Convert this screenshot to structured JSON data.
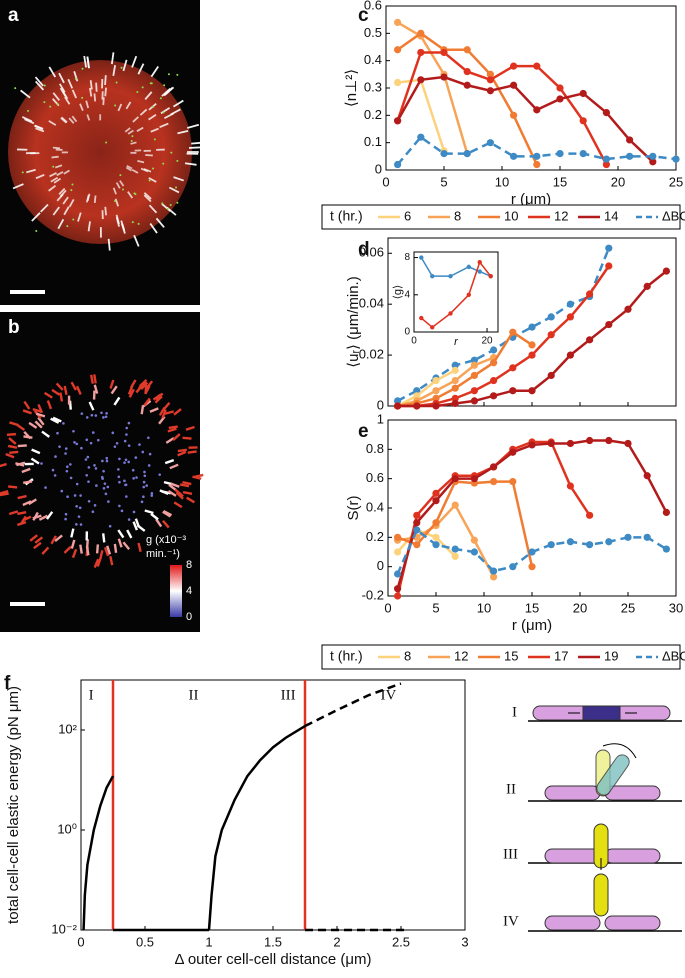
{
  "panel_labels": [
    "a",
    "b",
    "c",
    "d",
    "e",
    "f"
  ],
  "colorbar": {
    "label_lines": [
      "g (x10⁻³",
      "min.⁻¹)"
    ],
    "ticks": [
      8,
      4,
      0
    ]
  },
  "schematic_labels": [
    "I",
    "II",
    "III",
    "IV"
  ],
  "chart_data": [
    {
      "type": "line",
      "xlabel": "r (μm)",
      "ylabel": "⟨n⊥²⟩",
      "xlim": [
        0,
        25
      ],
      "ylim": [
        0,
        0.6
      ],
      "xticks": [
        0,
        5,
        10,
        15,
        20,
        25
      ],
      "yticks": [
        0,
        0.1,
        0.2,
        0.3,
        0.4,
        0.5,
        0.6
      ],
      "legend_title": "t (hr.)",
      "series": [
        {
          "name": "6",
          "color": "#fdd27d",
          "x": [
            1,
            3,
            5
          ],
          "values": [
            0.32,
            0.33,
            0.07
          ]
        },
        {
          "name": "8",
          "color": "#f7a457",
          "x": [
            1,
            3,
            5,
            7
          ],
          "values": [
            0.54,
            0.49,
            0.35,
            0.06
          ]
        },
        {
          "name": "10",
          "color": "#f07c33",
          "x": [
            1,
            3,
            5,
            7,
            9,
            11,
            13
          ],
          "values": [
            0.44,
            0.5,
            0.44,
            0.44,
            0.35,
            0.2,
            0.02
          ]
        },
        {
          "name": "12",
          "color": "#e0331f",
          "x": [
            1,
            3,
            5,
            7,
            9,
            11,
            13,
            15,
            17,
            19
          ],
          "values": [
            0.18,
            0.43,
            0.43,
            0.36,
            0.33,
            0.38,
            0.38,
            0.3,
            0.18,
            0.02
          ]
        },
        {
          "name": "14",
          "color": "#b31b1b",
          "x": [
            1,
            3,
            5,
            7,
            9,
            11,
            13,
            15,
            17,
            19,
            21,
            23
          ],
          "values": [
            0.18,
            0.33,
            0.34,
            0.31,
            0.29,
            0.31,
            0.22,
            0.26,
            0.28,
            0.21,
            0.11,
            0.03
          ]
        },
        {
          "name": "ΔBC",
          "color": "#3d8ac4",
          "dashed": true,
          "x": [
            1,
            3,
            5,
            7,
            9,
            11,
            13,
            15,
            17,
            19,
            21,
            23,
            25
          ],
          "values": [
            0.02,
            0.12,
            0.06,
            0.06,
            0.1,
            0.05,
            0.05,
            0.06,
            0.06,
            0.04,
            0.05,
            0.05,
            0.04
          ]
        }
      ]
    },
    {
      "type": "line",
      "ylabel": "⟨uᵣ⟩ (μm/min.)",
      "xlim": [
        0,
        30
      ],
      "ylim": [
        0,
        0.066
      ],
      "xticks": [
        0,
        5,
        10,
        15,
        20,
        25,
        30
      ],
      "xtick_labels": false,
      "yticks": [
        0,
        0.02,
        0.04,
        0.06
      ],
      "series": [
        {
          "color": "#3d8ac4",
          "dashed": true,
          "x": [
            1,
            3,
            5,
            7,
            9,
            11,
            13,
            15,
            17,
            19,
            21,
            23
          ],
          "values": [
            0.002,
            0.006,
            0.011,
            0.016,
            0.018,
            0.022,
            0.027,
            0.031,
            0.035,
            0.04,
            0.043,
            0.062
          ]
        },
        {
          "color": "#fdd27d",
          "x": [
            1,
            3,
            5,
            7
          ],
          "values": [
            0,
            0.004,
            0.01,
            0.014
          ]
        },
        {
          "color": "#f7a457",
          "x": [
            1,
            3,
            5,
            7,
            9,
            11
          ],
          "values": [
            0,
            0.002,
            0.006,
            0.01,
            0.016,
            0.019
          ]
        },
        {
          "color": "#f07c33",
          "x": [
            1,
            3,
            5,
            7,
            9,
            11,
            13,
            15
          ],
          "values": [
            0,
            0.001,
            0.003,
            0.007,
            0.012,
            0.017,
            0.029,
            0.024
          ]
        },
        {
          "color": "#e0331f",
          "x": [
            1,
            3,
            5,
            7,
            9,
            11,
            13,
            15,
            17,
            19,
            21,
            23
          ],
          "values": [
            0,
            0,
            0.001,
            0.003,
            0.006,
            0.01,
            0.015,
            0.02,
            0.028,
            0.035,
            0.044,
            0.055
          ]
        },
        {
          "color": "#b31b1b",
          "x": [
            1,
            3,
            5,
            7,
            9,
            11,
            13,
            15,
            17,
            19,
            21,
            23,
            25,
            27,
            29
          ],
          "values": [
            0,
            0,
            0,
            0.001,
            0.002,
            0.004,
            0.006,
            0.006,
            0.012,
            0.02,
            0.026,
            0.032,
            0.038,
            0.047,
            0.053
          ]
        }
      ]
    },
    {
      "type": "line",
      "xlabel": "r",
      "ylabel": "⟨g⟩",
      "xlim": [
        0,
        23
      ],
      "ylim": [
        0,
        8.6
      ],
      "xticks": [
        0,
        20
      ],
      "yticks": [
        0,
        4,
        8
      ],
      "series": [
        {
          "color": "#3d8ac4",
          "x": [
            2,
            5,
            10,
            15,
            18,
            21
          ],
          "values": [
            8,
            6,
            6,
            7,
            6.5,
            6
          ]
        },
        {
          "color": "#e0331f",
          "x": [
            2,
            5,
            10,
            15,
            18,
            21
          ],
          "values": [
            1.5,
            0.5,
            2,
            4,
            7.5,
            6
          ]
        }
      ]
    },
    {
      "type": "line",
      "xlabel": "r (μm)",
      "ylabel": "S(r)",
      "xlim": [
        0,
        30
      ],
      "ylim": [
        -0.2,
        1
      ],
      "xticks": [
        0,
        5,
        10,
        15,
        20,
        25,
        30
      ],
      "yticks": [
        -0.2,
        0,
        0.2,
        0.4,
        0.6,
        0.8,
        1
      ],
      "legend_title": "t (hr.)",
      "series": [
        {
          "name": "8",
          "color": "#fdd27d",
          "x": [
            1,
            3,
            5,
            7
          ],
          "values": [
            0.1,
            0.25,
            0.2,
            0.07
          ]
        },
        {
          "name": "12",
          "color": "#f7a457",
          "x": [
            1,
            3,
            5,
            7,
            9,
            11
          ],
          "values": [
            0.18,
            0.2,
            0.28,
            0.42,
            0.18,
            -0.07
          ]
        },
        {
          "name": "15",
          "color": "#f07c33",
          "x": [
            1,
            3,
            5,
            7,
            9,
            11,
            13,
            15
          ],
          "values": [
            0.2,
            0.15,
            0.3,
            0.58,
            0.57,
            0.58,
            0.58,
            0
          ]
        },
        {
          "name": "17",
          "color": "#e0331f",
          "x": [
            1,
            3,
            5,
            7,
            9,
            11,
            13,
            15,
            17,
            19,
            21
          ],
          "values": [
            -0.2,
            0.35,
            0.5,
            0.62,
            0.62,
            0.68,
            0.8,
            0.85,
            0.85,
            0.55,
            0.35
          ]
        },
        {
          "name": "19",
          "color": "#b31b1b",
          "x": [
            1,
            3,
            5,
            7,
            9,
            11,
            13,
            15,
            17,
            19,
            21,
            23,
            25,
            27,
            29
          ],
          "values": [
            -0.15,
            0.3,
            0.45,
            0.6,
            0.6,
            0.68,
            0.78,
            0.83,
            0.84,
            0.84,
            0.86,
            0.86,
            0.84,
            0.62,
            0.37
          ]
        },
        {
          "name": "ΔBC",
          "color": "#3d8ac4",
          "dashed": true,
          "x": [
            1,
            3,
            5,
            7,
            9,
            11,
            13,
            15,
            17,
            19,
            21,
            23,
            25,
            27,
            29
          ],
          "values": [
            -0.05,
            0.25,
            0.15,
            0.12,
            0.1,
            -0.03,
            0,
            0.1,
            0.15,
            0.17,
            0.15,
            0.17,
            0.2,
            0.2,
            0.12
          ]
        }
      ]
    },
    {
      "type": "line",
      "xlabel": "Δ outer cell-cell distance (μm)",
      "ylabel": "total cell-cell elastic energy (pN μm)",
      "log_y": true,
      "markers": false,
      "xlim": [
        0,
        3
      ],
      "ylim": [
        0.01,
        1000
      ],
      "xticks": [
        0,
        0.5,
        1,
        1.5,
        2,
        2.5,
        3
      ],
      "yticks": [
        {
          "value": 0.01,
          "label": "10⁻²"
        },
        {
          "value": 1,
          "label": "10⁰"
        },
        {
          "value": 100,
          "label": "10²"
        }
      ],
      "vlines": [
        0.25,
        1.75
      ],
      "vline_color": "#e0331f",
      "annotations": [
        "I",
        "II",
        "III",
        "IV"
      ],
      "series": [
        {
          "color": "#000000",
          "x": [
            0.02,
            0.03,
            0.05,
            0.1,
            0.15,
            0.2,
            0.25
          ],
          "values": [
            0.01,
            0.05,
            0.2,
            1,
            3,
            7,
            12
          ]
        },
        {
          "color": "#000000",
          "x": [
            0.25,
            1
          ],
          "values": [
            0.01,
            0.01
          ]
        },
        {
          "color": "#000000",
          "x": [
            1,
            1.02,
            1.05,
            1.1,
            1.2,
            1.3,
            1.4,
            1.5,
            1.6,
            1.75
          ],
          "values": [
            0.01,
            0.05,
            0.3,
            1,
            4,
            12,
            25,
            45,
            70,
            120
          ]
        },
        {
          "color": "#000000",
          "dashed": true,
          "x": [
            1.75,
            2,
            2.25,
            2.5
          ],
          "values": [
            120,
            250,
            500,
            850
          ]
        },
        {
          "color": "#000000",
          "dashed": true,
          "x": [
            1.75,
            2.55
          ],
          "values": [
            0.01,
            0.01
          ]
        }
      ]
    }
  ]
}
